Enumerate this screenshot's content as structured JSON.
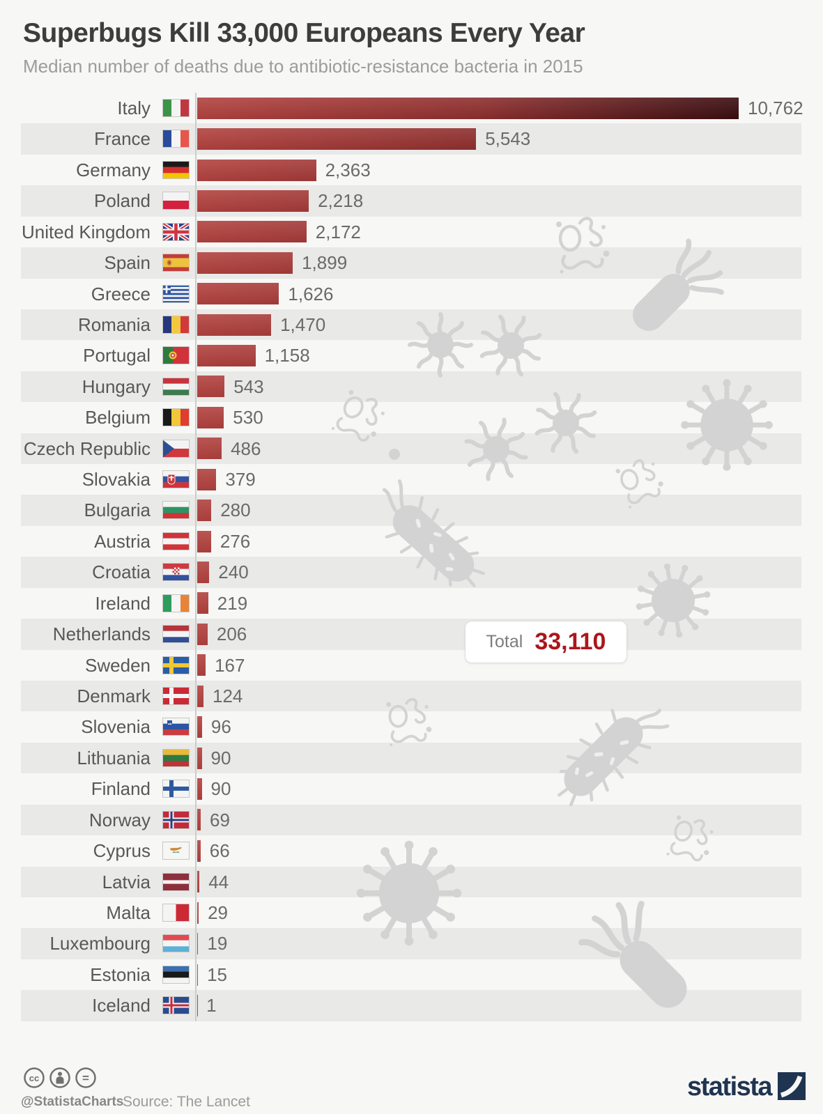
{
  "title": "Superbugs Kill 33,000 Europeans Every Year",
  "subtitle": "Median number of deaths due to antibiotic-resistance bacteria in 2015",
  "chart_data": {
    "type": "bar",
    "orientation": "horizontal",
    "title": "Superbugs Kill 33,000 Europeans Every Year",
    "subtitle": "Median number of deaths due to antibiotic-resistance bacteria in 2015",
    "categories": [
      "Italy",
      "France",
      "Germany",
      "Poland",
      "United Kingdom",
      "Spain",
      "Greece",
      "Romania",
      "Portugal",
      "Hungary",
      "Belgium",
      "Czech Republic",
      "Slovakia",
      "Bulgaria",
      "Austria",
      "Croatia",
      "Ireland",
      "Netherlands",
      "Sweden",
      "Denmark",
      "Slovenia",
      "Lithuania",
      "Finland",
      "Norway",
      "Cyprus",
      "Latvia",
      "Malta",
      "Luxembourg",
      "Estonia",
      "Iceland"
    ],
    "values": [
      10762,
      5543,
      2363,
      2218,
      2172,
      1899,
      1626,
      1470,
      1158,
      543,
      530,
      486,
      379,
      280,
      276,
      240,
      219,
      206,
      167,
      124,
      96,
      90,
      90,
      69,
      66,
      44,
      29,
      19,
      15,
      1
    ],
    "value_labels": [
      "10,762",
      "5,543",
      "2,363",
      "2,218",
      "2,172",
      "1,899",
      "1,626",
      "1,470",
      "1,158",
      "543",
      "530",
      "486",
      "379",
      "280",
      "276",
      "240",
      "219",
      "206",
      "167",
      "124",
      "96",
      "90",
      "90",
      "69",
      "66",
      "44",
      "29",
      "19",
      "15",
      "1"
    ],
    "max_value": 10762,
    "xlim": [
      0,
      10762
    ],
    "grid": false,
    "legend": "none",
    "total": {
      "label": "Total",
      "value": 33110,
      "value_label": "33,110"
    }
  },
  "flags": [
    {
      "t": "v",
      "c": [
        "#3d9348",
        "#f4f4f4",
        "#c03744"
      ]
    },
    {
      "t": "v",
      "c": [
        "#2a4b9b",
        "#f4f4f4",
        "#e8554a"
      ]
    },
    {
      "t": "h",
      "c": [
        "#1a1a1a",
        "#d22f2f",
        "#f5c400"
      ]
    },
    {
      "t": "h",
      "c": [
        "#f4f4f4",
        "#d4213d"
      ]
    },
    {
      "t": "uk"
    },
    {
      "t": "spain"
    },
    {
      "t": "greece"
    },
    {
      "t": "v",
      "c": [
        "#27377d",
        "#f2c93e",
        "#d13a3a"
      ]
    },
    {
      "t": "portugal"
    },
    {
      "t": "h",
      "c": [
        "#c8333e",
        "#f4f4f4",
        "#3e7a4e"
      ]
    },
    {
      "t": "v",
      "c": [
        "#1a1a1a",
        "#f0c838",
        "#e03c31"
      ]
    },
    {
      "t": "czech"
    },
    {
      "t": "slovakia"
    },
    {
      "t": "h",
      "c": [
        "#f4f4f4",
        "#2e9464",
        "#cf3336"
      ]
    },
    {
      "t": "h",
      "c": [
        "#d03438",
        "#f4f4f4",
        "#d03438"
      ]
    },
    {
      "t": "croatia"
    },
    {
      "t": "v",
      "c": [
        "#2e9c5c",
        "#f4f4f4",
        "#e8833a"
      ]
    },
    {
      "t": "h",
      "c": [
        "#b5343c",
        "#f4f4f4",
        "#324f95"
      ]
    },
    {
      "t": "nordic",
      "bg": "#2a5da8",
      "cross": "#f0c832"
    },
    {
      "t": "nordic",
      "bg": "#cc2936",
      "cross": "#f4f4f4"
    },
    {
      "t": "slovenia"
    },
    {
      "t": "h",
      "c": [
        "#e8b93a",
        "#2e7a43",
        "#bc3437"
      ]
    },
    {
      "t": "nordic",
      "bg": "#f4f4f4",
      "cross": "#2d5a9e"
    },
    {
      "t": "nordic",
      "bg": "#c22b3a",
      "cross": "#f4f4f4",
      "inner": "#2a3f7e"
    },
    {
      "t": "cyprus"
    },
    {
      "t": "h",
      "c": [
        "#8e2f3c",
        "#f4f4f4",
        "#8e2f3c"
      ],
      "w": [
        2,
        1,
        2
      ]
    },
    {
      "t": "v",
      "c": [
        "#f4f4f4",
        "#cc2936"
      ]
    },
    {
      "t": "h",
      "c": [
        "#e14b50",
        "#f4f4f4",
        "#5eb0d8"
      ]
    },
    {
      "t": "h",
      "c": [
        "#3a6fb0",
        "#1a1a1a",
        "#f4f4f4"
      ]
    },
    {
      "t": "nordic",
      "bg": "#2a4b8f",
      "cross": "#f4f4f4",
      "inner": "#cc2936"
    }
  ],
  "footer": {
    "license_icons": [
      "cc-icon",
      "attribution-icon",
      "share-alike-icon"
    ],
    "handle": "@StatistaCharts",
    "source": "Source: The Lancet",
    "brand": "statista"
  },
  "colors": {
    "background": "#f7f7f6",
    "stripe": "#e9e9e8",
    "bar_gradient_start": "#b2423f",
    "bar_gradient_end": "#3a0d10",
    "total_value": "#ab161c",
    "brand_navy": "#1f3450",
    "decoration_gray": "#d3d3d3"
  }
}
